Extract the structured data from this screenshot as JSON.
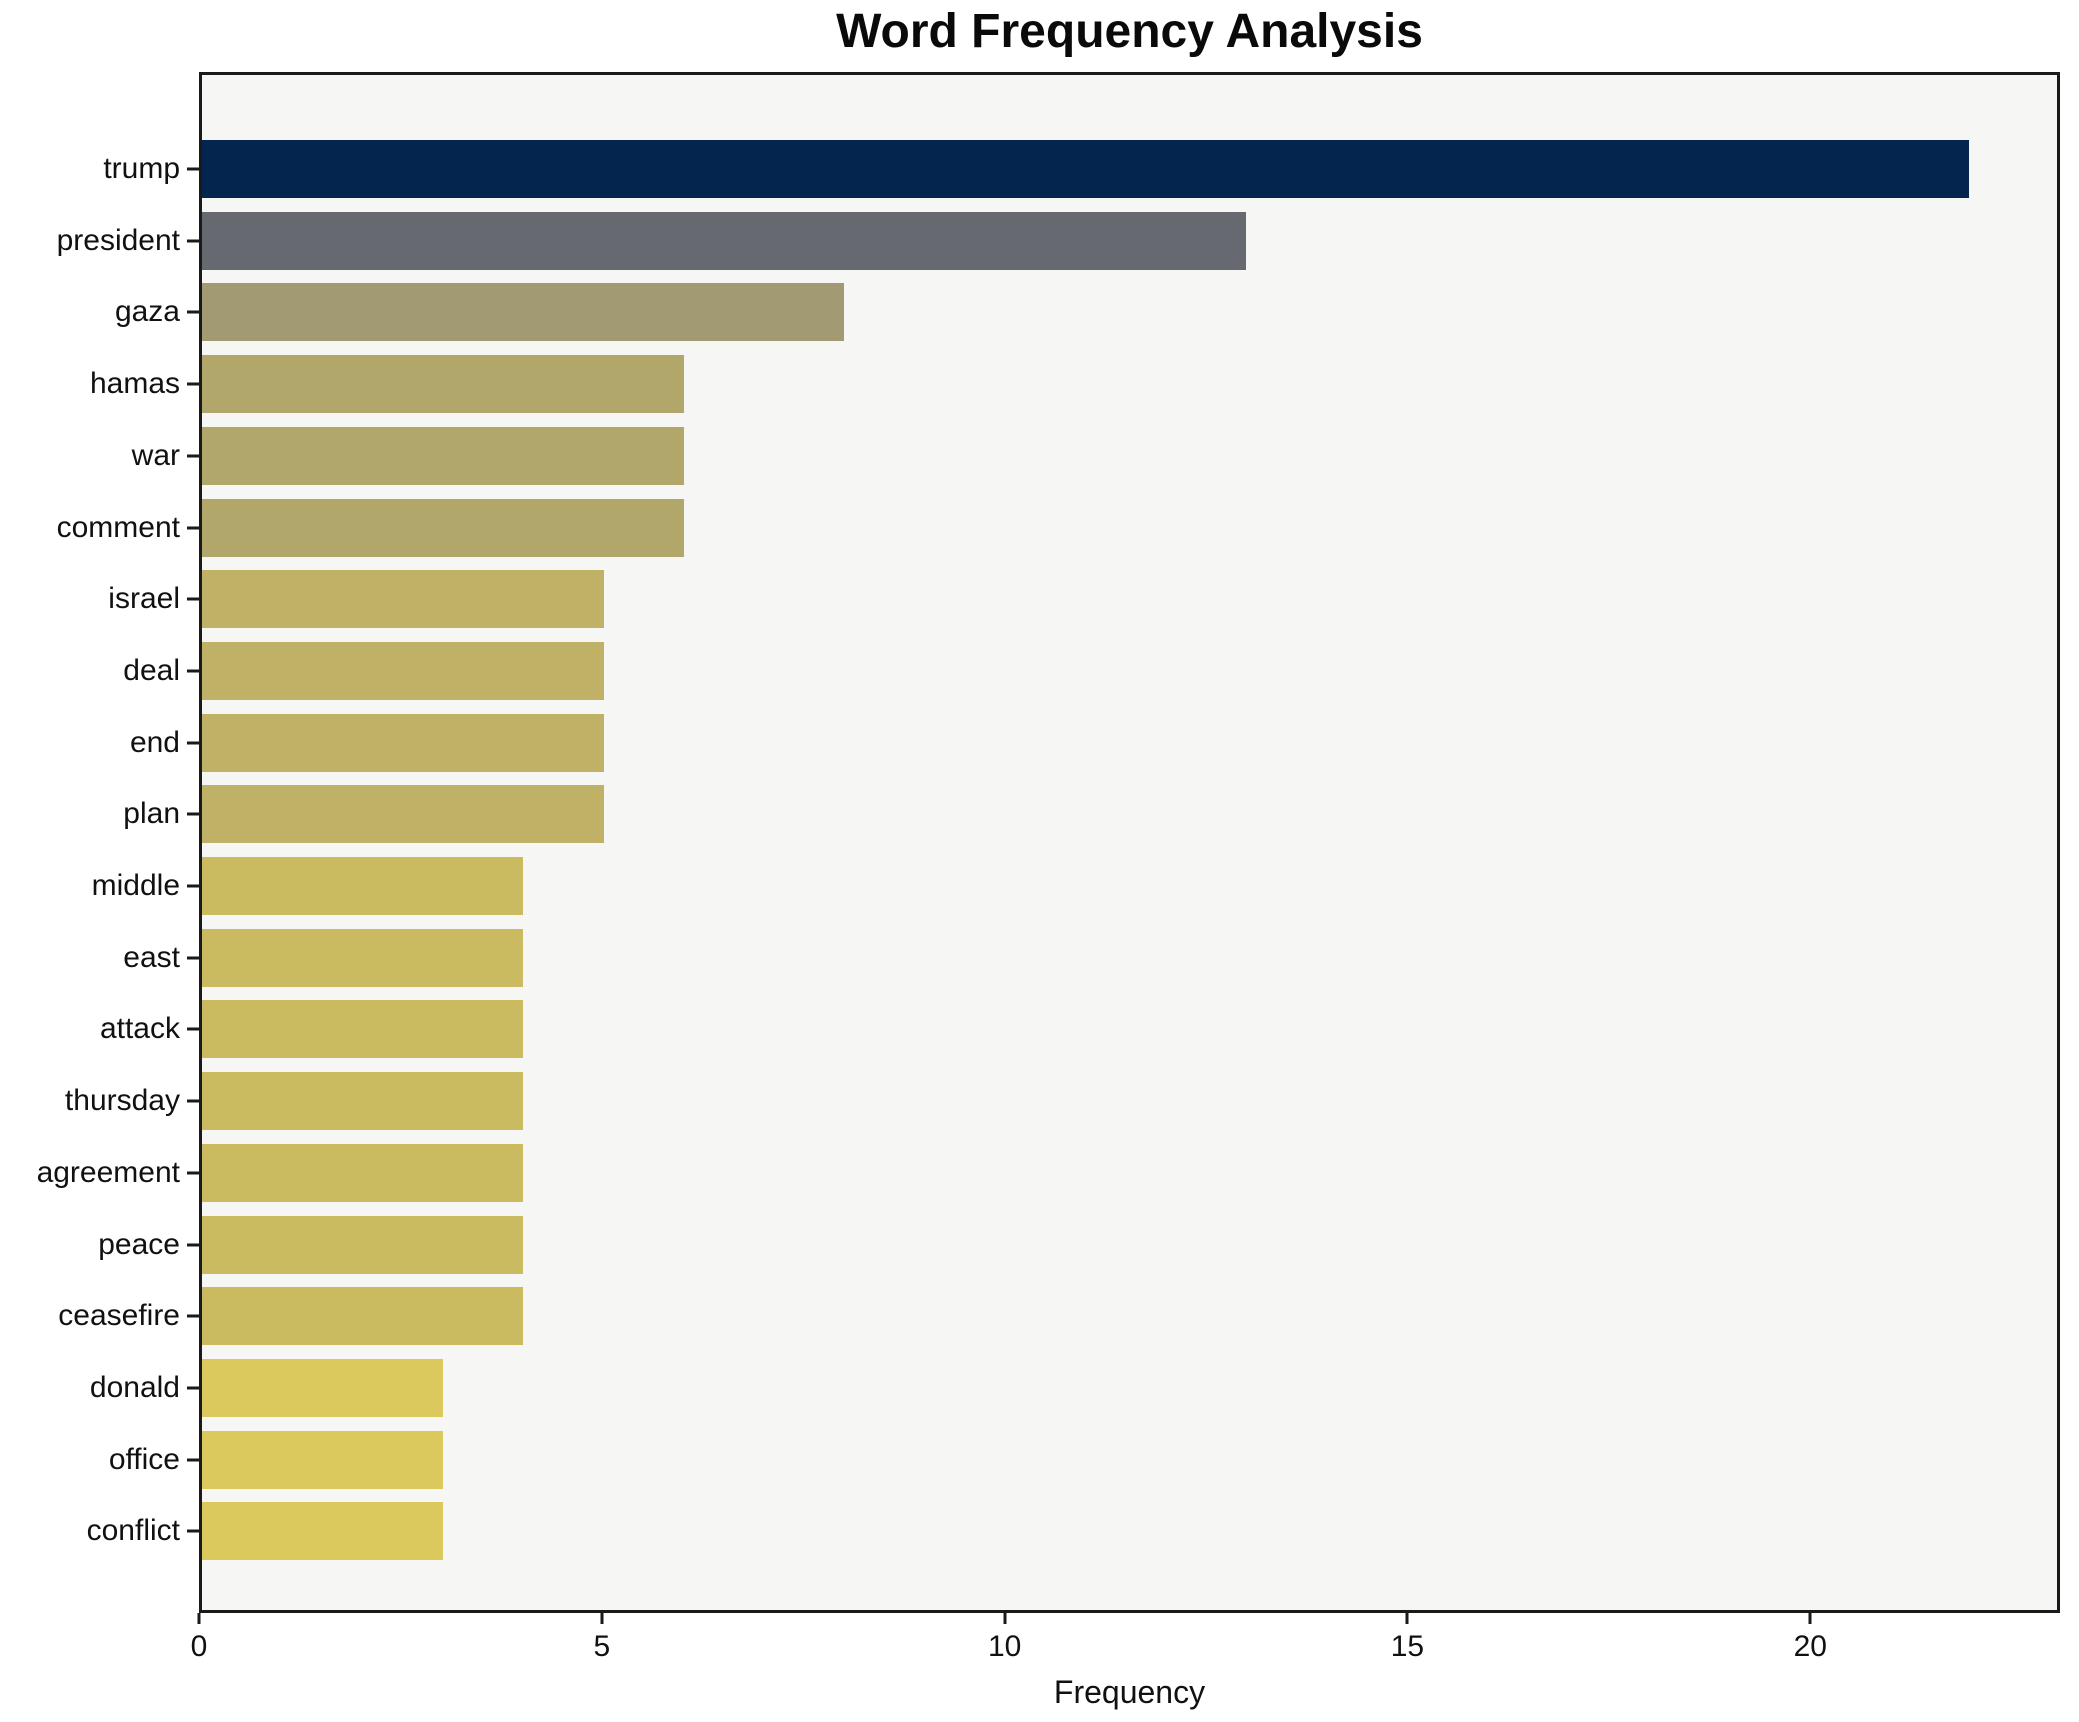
{
  "chart_data": {
    "type": "bar",
    "orientation": "horizontal",
    "title": "Word Frequency Analysis",
    "xlabel": "Frequency",
    "ylabel": "",
    "categories": [
      "trump",
      "president",
      "gaza",
      "hamas",
      "war",
      "comment",
      "israel",
      "deal",
      "end",
      "plan",
      "middle",
      "east",
      "attack",
      "thursday",
      "agreement",
      "peace",
      "ceasefire",
      "donald",
      "office",
      "conflict"
    ],
    "values": [
      22,
      13,
      8,
      6,
      6,
      6,
      5,
      5,
      5,
      5,
      4,
      4,
      4,
      4,
      4,
      4,
      4,
      3,
      3,
      3
    ],
    "bar_colors": [
      "#03254e",
      "#666a70",
      "#a19a72",
      "#b2a76b",
      "#b2a76b",
      "#b2a76b",
      "#bfb165",
      "#bfb165",
      "#bfb165",
      "#bfb165",
      "#cbbb60",
      "#cbbb60",
      "#cbbb60",
      "#cbbb60",
      "#cbbb60",
      "#cbbb60",
      "#cbbb60",
      "#dcc95d",
      "#dcc95d",
      "#dcc95d"
    ],
    "xticks": [
      0,
      5,
      10,
      15,
      20
    ],
    "xlim": [
      0,
      23.1
    ],
    "grid": false,
    "legend": null,
    "plot_background": "#f6f6f4",
    "figure_background": "#ffffff",
    "axis_color": "#1a1a1a"
  }
}
